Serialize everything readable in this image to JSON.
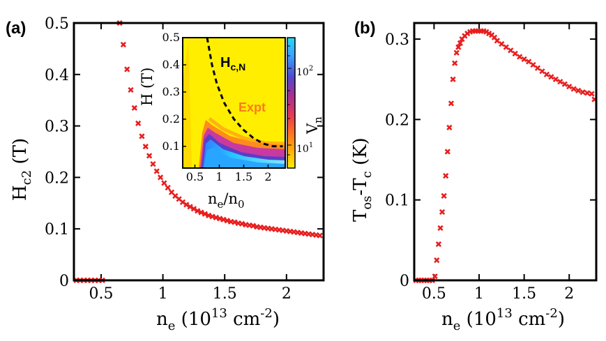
{
  "chart_data": [
    {
      "type": "scatter",
      "panel_label": "(a)",
      "xlim": [
        0.28,
        2.3
      ],
      "ylim": [
        0,
        0.5
      ],
      "xticks": [
        "0.5",
        "1",
        "1.5",
        "2"
      ],
      "xtick_values": [
        0.5,
        1,
        1.5,
        2
      ],
      "yticks": [
        "0",
        "0.1",
        "0.2",
        "0.3",
        "0.4",
        "0.5"
      ],
      "ytick_values": [
        0,
        0.1,
        0.2,
        0.3,
        0.4,
        0.5
      ],
      "xlabel": {
        "main": "n",
        "sub": "e",
        "pre": " (10",
        "sup1": "13",
        "mid": " cm",
        "sup2": "-2",
        "post": ")"
      },
      "ylabel": {
        "main": "H",
        "sub": "c2",
        "post": " (T)"
      },
      "marker": "x",
      "color": "#e81e1e",
      "x": [
        0.3,
        0.33,
        0.36,
        0.39,
        0.42,
        0.45,
        0.48,
        0.51,
        0.65,
        0.68,
        0.71,
        0.74,
        0.77,
        0.8,
        0.83,
        0.86,
        0.89,
        0.92,
        0.95,
        0.98,
        1.01,
        1.04,
        1.07,
        1.1,
        1.13,
        1.16,
        1.19,
        1.22,
        1.25,
        1.28,
        1.31,
        1.34,
        1.37,
        1.4,
        1.43,
        1.46,
        1.49,
        1.52,
        1.55,
        1.58,
        1.61,
        1.64,
        1.67,
        1.7,
        1.73,
        1.76,
        1.79,
        1.82,
        1.85,
        1.88,
        1.91,
        1.94,
        1.97,
        2.0,
        2.03,
        2.06,
        2.09,
        2.12,
        2.15,
        2.18,
        2.21,
        2.24,
        2.27
      ],
      "y": [
        0,
        0,
        0,
        0,
        0,
        0,
        0,
        0,
        0.5,
        0.458,
        0.41,
        0.37,
        0.335,
        0.305,
        0.28,
        0.26,
        0.242,
        0.226,
        0.212,
        0.2,
        0.189,
        0.18,
        0.171,
        0.164,
        0.158,
        0.152,
        0.147,
        0.143,
        0.139,
        0.135,
        0.132,
        0.129,
        0.126,
        0.124,
        0.122,
        0.12,
        0.118,
        0.116,
        0.114,
        0.113,
        0.111,
        0.11,
        0.108,
        0.107,
        0.106,
        0.104,
        0.103,
        0.102,
        0.101,
        0.1,
        0.099,
        0.098,
        0.097,
        0.096,
        0.095,
        0.094,
        0.093,
        0.092,
        0.091,
        0.09,
        0.089,
        0.088,
        0.087
      ]
    },
    {
      "type": "scatter",
      "panel_label": "(b)",
      "xlim": [
        0.28,
        2.3
      ],
      "ylim": [
        0,
        0.32
      ],
      "xticks": [
        "0.5",
        "1",
        "1.5",
        "2"
      ],
      "xtick_values": [
        0.5,
        1,
        1.5,
        2
      ],
      "yticks": [
        "0",
        "0.1",
        "0.2",
        "0.3"
      ],
      "ytick_values": [
        0,
        0.1,
        0.2,
        0.3
      ],
      "xlabel": {
        "main": "n",
        "sub": "e",
        "pre": " (10",
        "sup1": "13",
        "mid": " cm",
        "sup2": "-2",
        "post": ")"
      },
      "ylabel": {
        "main": "T",
        "sub": "os",
        "mid": "-T",
        "sub2": "c",
        "post": " (K)"
      },
      "marker": "x",
      "color": "#e81e1e",
      "x": [
        0.3,
        0.33,
        0.36,
        0.39,
        0.42,
        0.45,
        0.48,
        0.51,
        0.53,
        0.55,
        0.57,
        0.59,
        0.61,
        0.63,
        0.65,
        0.67,
        0.69,
        0.71,
        0.73,
        0.75,
        0.77,
        0.79,
        0.81,
        0.84,
        0.87,
        0.9,
        0.93,
        0.96,
        0.99,
        1.02,
        1.05,
        1.08,
        1.11,
        1.14,
        1.17,
        1.2,
        1.25,
        1.3,
        1.35,
        1.4,
        1.45,
        1.5,
        1.55,
        1.6,
        1.65,
        1.7,
        1.75,
        1.8,
        1.85,
        1.9,
        1.95,
        2.0,
        2.05,
        2.1,
        2.15,
        2.2,
        2.25,
        2.28
      ],
      "y": [
        0,
        0,
        0,
        0,
        0,
        0,
        0,
        0.005,
        0.025,
        0.045,
        0.065,
        0.085,
        0.105,
        0.13,
        0.16,
        0.19,
        0.22,
        0.25,
        0.27,
        0.283,
        0.29,
        0.295,
        0.3,
        0.304,
        0.307,
        0.309,
        0.31,
        0.31,
        0.31,
        0.31,
        0.31,
        0.309,
        0.307,
        0.305,
        0.302,
        0.298,
        0.294,
        0.29,
        0.286,
        0.282,
        0.278,
        0.275,
        0.272,
        0.268,
        0.264,
        0.26,
        0.256,
        0.253,
        0.25,
        0.247,
        0.244,
        0.241,
        0.238,
        0.236,
        0.234,
        0.233,
        0.232,
        0.225
      ]
    }
  ],
  "inset": {
    "type": "heatmap",
    "xticks": [
      "0.5",
      "1",
      "1.5",
      "2"
    ],
    "xtick_values": [
      0.5,
      1,
      1.5,
      2
    ],
    "xlim": [
      0.25,
      2.35
    ],
    "yticks": [
      "0.5",
      "0.4",
      "0.3",
      "0.2",
      "0.1"
    ],
    "ytick_values": [
      0.5,
      0.4,
      0.3,
      0.2,
      0.1
    ],
    "ylim": [
      0.02,
      0.5
    ],
    "xlabel": {
      "main": "n",
      "sub1": "e",
      "slash": "/n",
      "sub2": "0"
    },
    "ylabel": "H (T)",
    "annotation_hcn": {
      "main": "H",
      "sub": "c,N"
    },
    "annotation_expt": "Expt",
    "colorbar_label": {
      "main": "V",
      "sub": "n"
    },
    "colorbar_ticks": [
      {
        "base": "10",
        "exp": "2"
      },
      {
        "base": "10",
        "exp": "1"
      }
    ],
    "colors": {
      "background": "#ffee00",
      "low": "#2aa9ff",
      "edge": "#ff3c30",
      "boundary": "#000000"
    },
    "boundary_curve": {
      "x": [
        0.75,
        0.85,
        0.95,
        1.1,
        1.3,
        1.5,
        1.7,
        1.9,
        2.1,
        2.3
      ],
      "y": [
        0.5,
        0.4,
        0.33,
        0.26,
        0.2,
        0.16,
        0.13,
        0.11,
        0.1,
        0.1
      ]
    }
  }
}
